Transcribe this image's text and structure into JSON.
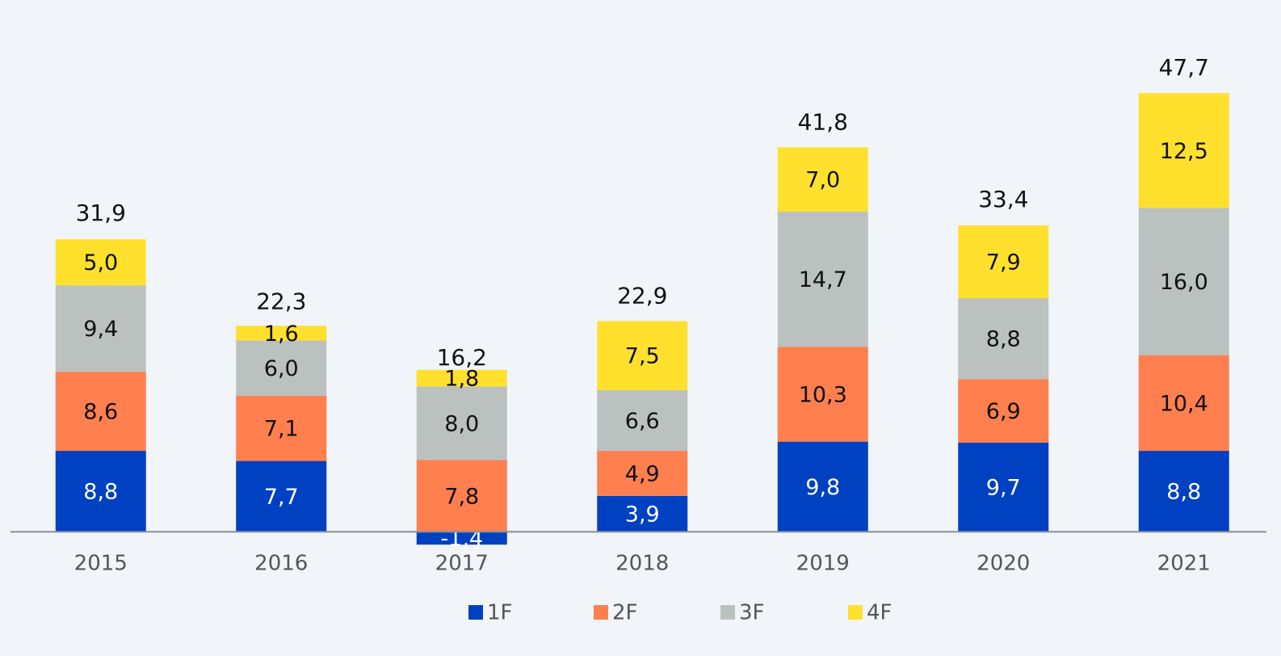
{
  "chart_data": {
    "type": "stacked_bar",
    "categories": [
      "2015",
      "2016",
      "2017",
      "2018",
      "2019",
      "2020",
      "2021"
    ],
    "series": [
      {
        "name": "1F",
        "color": "#0041c2",
        "values": [
          8.8,
          7.7,
          -1.4,
          3.9,
          9.8,
          9.7,
          8.8
        ],
        "value_labels": [
          "8,8",
          "7,7",
          "-1,4",
          "3,9",
          "9,8",
          "9,7",
          "8,8"
        ]
      },
      {
        "name": "2F",
        "color": "#ff7f4f",
        "values": [
          8.6,
          7.1,
          7.8,
          4.9,
          10.3,
          6.9,
          10.4
        ],
        "value_labels": [
          "8,6",
          "7,1",
          "7,8",
          "4,9",
          "10,3",
          "6,9",
          "10,4"
        ]
      },
      {
        "name": "3F",
        "color": "#bbc1be",
        "values": [
          9.4,
          6.0,
          8.0,
          6.6,
          14.7,
          8.8,
          16.0
        ],
        "value_labels": [
          "9,4",
          "6,0",
          "8,0",
          "6,6",
          "14,7",
          "8,8",
          "16,0"
        ]
      },
      {
        "name": "4F",
        "color": "#ffe02d",
        "values": [
          5.0,
          1.6,
          1.8,
          7.5,
          7.0,
          7.9,
          12.5
        ],
        "value_labels": [
          "5,0",
          "1,6",
          "1,8",
          "7,5",
          "7,0",
          "7,9",
          "12,5"
        ]
      }
    ],
    "totals": [
      31.9,
      22.3,
      16.2,
      22.9,
      41.8,
      33.4,
      47.7
    ],
    "total_labels": [
      "31,9",
      "22,3",
      "16,2",
      "22,9",
      "41,8",
      "33,4",
      "47,7"
    ],
    "ylim": [
      -2,
      50
    ],
    "legend": "bottom"
  }
}
